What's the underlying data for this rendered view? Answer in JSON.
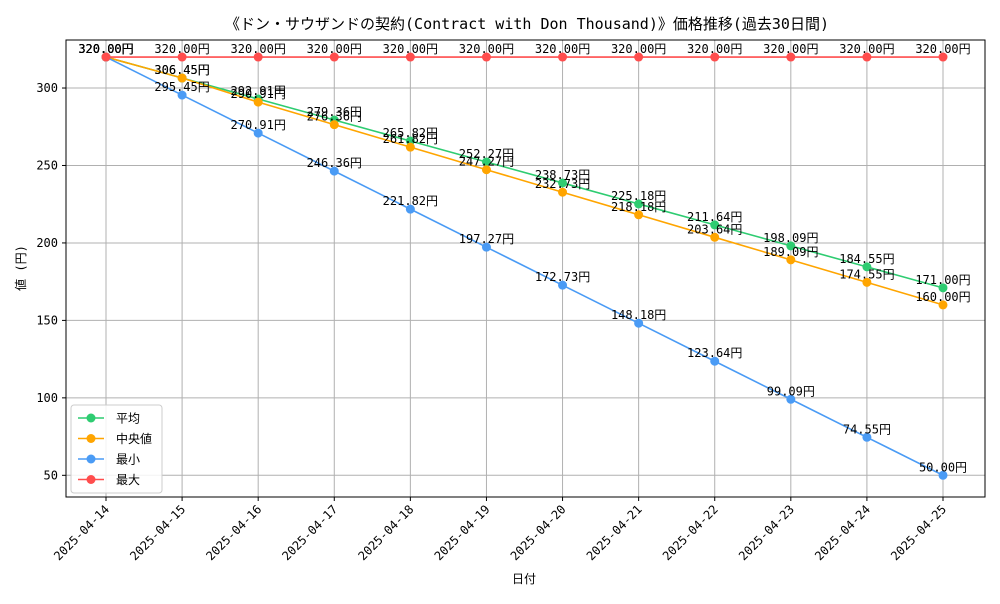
{
  "chart_data": {
    "type": "line",
    "title": "《ドン・サウザンドの契約(Contract with Don Thousand)》価格推移(過去30日間)",
    "xlabel": "日付",
    "ylabel": "値 (円)",
    "categories": [
      "2025-04-14",
      "2025-04-15",
      "2025-04-16",
      "2025-04-17",
      "2025-04-18",
      "2025-04-19",
      "2025-04-20",
      "2025-04-21",
      "2025-04-22",
      "2025-04-23",
      "2025-04-24",
      "2025-04-25"
    ],
    "ylim": [
      36,
      331
    ],
    "yticks": [
      50,
      100,
      150,
      200,
      250,
      300
    ],
    "grid": true,
    "legend_position": "lower-left",
    "value_suffix": "円",
    "series": [
      {
        "name": "平均",
        "color": "#2ecc71",
        "values": [
          320.0,
          306.45,
          292.91,
          279.36,
          265.82,
          252.27,
          238.73,
          225.18,
          211.64,
          198.09,
          184.55,
          171.0
        ]
      },
      {
        "name": "中央値",
        "color": "#ffa500",
        "values": [
          320.0,
          306.45,
          290.91,
          276.36,
          261.82,
          247.27,
          232.73,
          218.18,
          203.64,
          189.09,
          174.55,
          160.0
        ]
      },
      {
        "name": "最小",
        "color": "#4a9bf5",
        "values": [
          320.0,
          295.45,
          270.91,
          246.36,
          221.82,
          197.27,
          172.73,
          148.18,
          123.64,
          99.09,
          74.55,
          50.0
        ]
      },
      {
        "name": "最大",
        "color": "#ff4d4d",
        "values": [
          320.0,
          320.0,
          320.0,
          320.0,
          320.0,
          320.0,
          320.0,
          320.0,
          320.0,
          320.0,
          320.0,
          320.0
        ]
      }
    ]
  }
}
